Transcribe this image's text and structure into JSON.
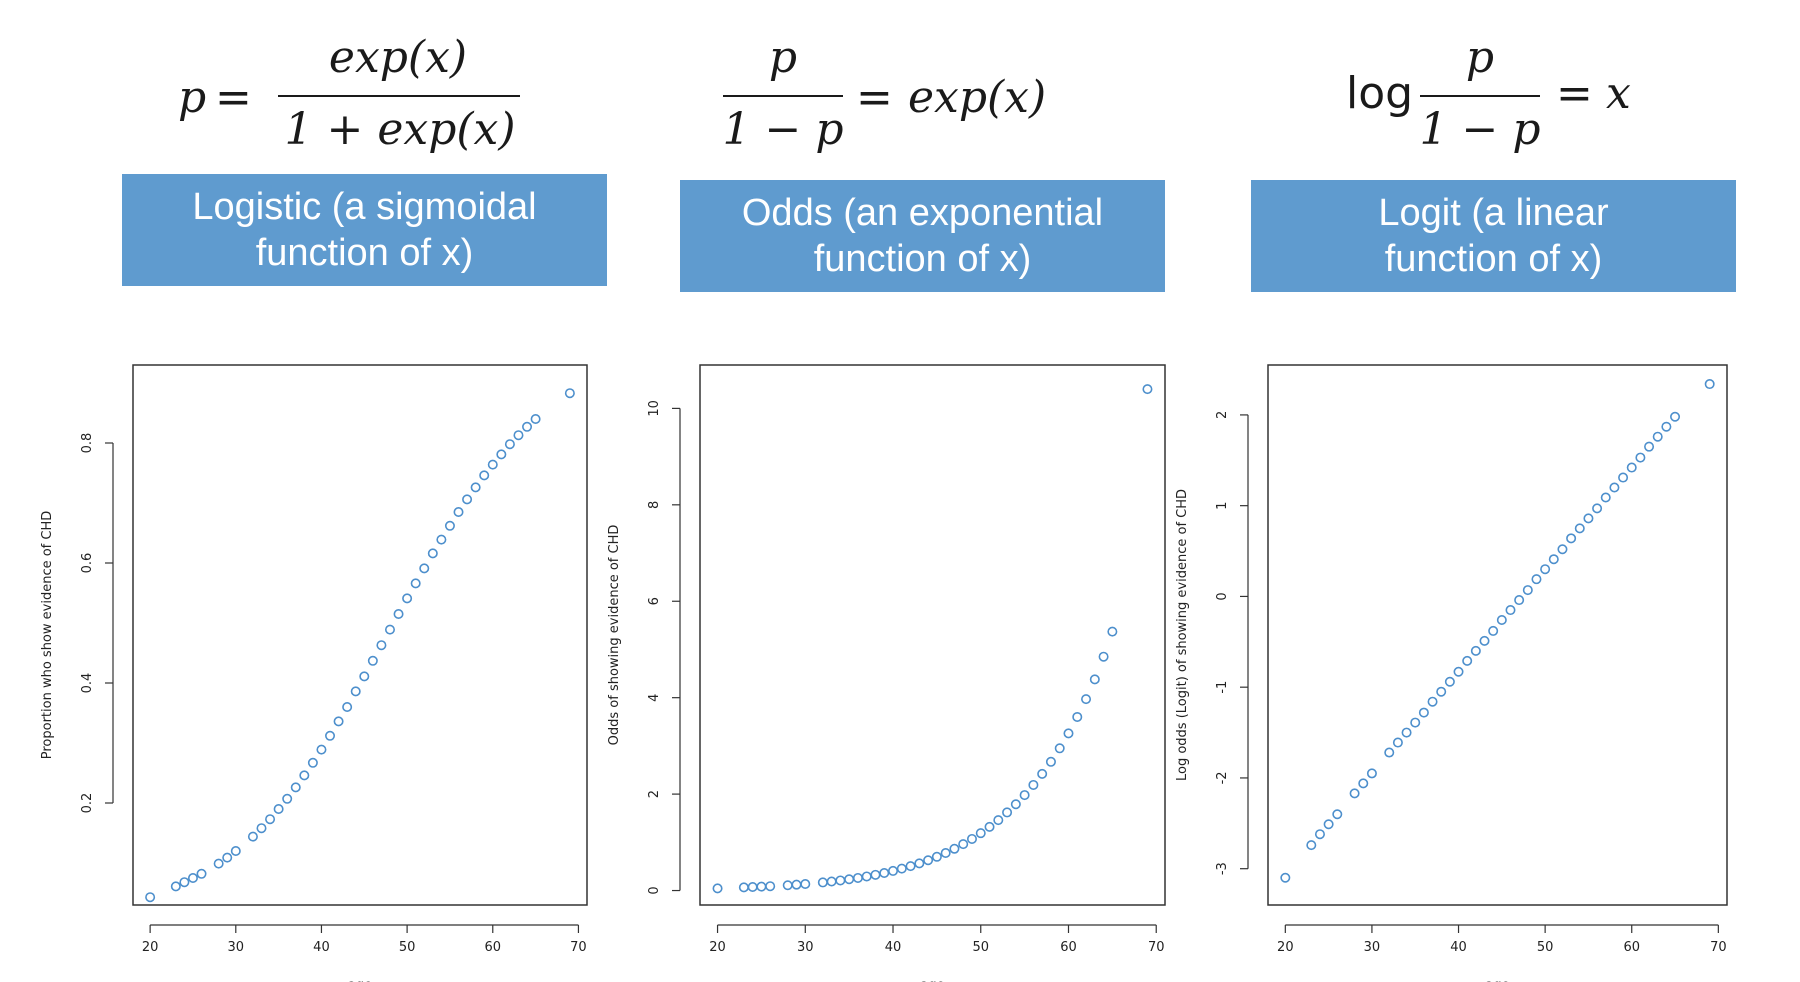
{
  "panels": [
    {
      "formula": {
        "lhs": "p",
        "eq": "=",
        "numerator": "exp(x)",
        "denominator": "1 + exp(x)"
      },
      "banner": {
        "line1": "Logistic (a sigmoidal",
        "line2": "function of x)"
      }
    },
    {
      "formula": {
        "numerator": "p",
        "denominator": "1 − p",
        "eq": "=",
        "rhs": "exp(x)"
      },
      "banner": {
        "line1": "Odds (an exponential",
        "line2": "function of x)"
      }
    },
    {
      "formula": {
        "prefix": "log",
        "numerator": "p",
        "denominator": "1 − p",
        "eq": "=",
        "rhs": "x"
      },
      "banner": {
        "line1": "Logit (a linear",
        "line2": "function of x)"
      }
    }
  ],
  "colors": {
    "banner": "#5f9bcf",
    "points": "#4d8fcc",
    "axis": "#333333"
  },
  "chart_data": [
    {
      "type": "scatter",
      "title": "",
      "xlabel": "age",
      "ylabel": "Proportion who show evidence of CHD",
      "xlim": [
        18,
        71
      ],
      "ylim": [
        0.03,
        0.93
      ],
      "xticks": [
        20,
        30,
        40,
        50,
        60,
        70
      ],
      "yticks": [
        0.2,
        0.4,
        0.6,
        0.8
      ],
      "ytick_labels": [
        "0.2",
        "0.4",
        "0.6",
        "0.8"
      ],
      "x": [
        20,
        23,
        24,
        25,
        26,
        28,
        29,
        30,
        32,
        33,
        34,
        35,
        36,
        37,
        38,
        39,
        40,
        41,
        42,
        43,
        44,
        45,
        46,
        47,
        48,
        49,
        50,
        51,
        52,
        53,
        54,
        55,
        56,
        57,
        58,
        59,
        60,
        61,
        62,
        63,
        64,
        65,
        69
      ],
      "y": [
        0.043,
        0.061,
        0.068,
        0.075,
        0.082,
        0.099,
        0.109,
        0.12,
        0.144,
        0.158,
        0.173,
        0.19,
        0.207,
        0.226,
        0.246,
        0.267,
        0.289,
        0.312,
        0.336,
        0.36,
        0.386,
        0.411,
        0.437,
        0.463,
        0.489,
        0.515,
        0.541,
        0.566,
        0.591,
        0.616,
        0.639,
        0.662,
        0.685,
        0.706,
        0.726,
        0.746,
        0.764,
        0.781,
        0.798,
        0.813,
        0.827,
        0.84,
        0.883
      ]
    },
    {
      "type": "scatter",
      "title": "",
      "xlabel": "age",
      "ylabel": "Odds of showing evidence of CHD",
      "xlim": [
        18,
        71
      ],
      "ylim": [
        -0.3,
        10.9
      ],
      "xticks": [
        20,
        30,
        40,
        50,
        60,
        70
      ],
      "yticks": [
        0,
        2,
        4,
        6,
        8,
        10
      ],
      "ytick_labels": [
        "0",
        "2",
        "4",
        "6",
        "8",
        "10"
      ],
      "x": [
        20,
        23,
        24,
        25,
        26,
        28,
        29,
        30,
        32,
        33,
        34,
        35,
        36,
        37,
        38,
        39,
        40,
        41,
        42,
        43,
        44,
        45,
        46,
        47,
        48,
        49,
        50,
        51,
        52,
        53,
        54,
        55,
        56,
        57,
        58,
        59,
        60,
        61,
        62,
        63,
        64,
        65,
        69
      ],
      "y": [
        0.045,
        0.065,
        0.073,
        0.081,
        0.09,
        0.11,
        0.122,
        0.136,
        0.168,
        0.187,
        0.209,
        0.234,
        0.261,
        0.292,
        0.326,
        0.364,
        0.407,
        0.454,
        0.506,
        0.563,
        0.628,
        0.7,
        0.779,
        0.866,
        0.963,
        1.07,
        1.19,
        1.32,
        1.46,
        1.62,
        1.79,
        1.98,
        2.19,
        2.42,
        2.67,
        2.95,
        3.26,
        3.6,
        3.97,
        4.38,
        4.85,
        5.37,
        10.4
      ]
    },
    {
      "type": "scatter",
      "title": "",
      "xlabel": "age",
      "ylabel": "Log odds (Logit) of showing evidence of CHD",
      "xlim": [
        18,
        71
      ],
      "ylim": [
        -3.4,
        2.55
      ],
      "xticks": [
        20,
        30,
        40,
        50,
        60,
        70
      ],
      "yticks": [
        -3,
        -2,
        -1,
        0,
        1,
        2
      ],
      "ytick_labels": [
        "-3",
        "-2",
        "-1",
        "0",
        "1",
        "2"
      ],
      "x": [
        20,
        23,
        24,
        25,
        26,
        28,
        29,
        30,
        32,
        33,
        34,
        35,
        36,
        37,
        38,
        39,
        40,
        41,
        42,
        43,
        44,
        45,
        46,
        47,
        48,
        49,
        50,
        51,
        52,
        53,
        54,
        55,
        56,
        57,
        58,
        59,
        60,
        61,
        62,
        63,
        64,
        65,
        69
      ],
      "y": [
        -3.1,
        -2.74,
        -2.62,
        -2.51,
        -2.4,
        -2.17,
        -2.06,
        -1.95,
        -1.72,
        -1.61,
        -1.5,
        -1.39,
        -1.28,
        -1.16,
        -1.05,
        -0.94,
        -0.83,
        -0.71,
        -0.6,
        -0.49,
        -0.38,
        -0.26,
        -0.15,
        -0.04,
        0.07,
        0.19,
        0.3,
        0.41,
        0.52,
        0.64,
        0.75,
        0.86,
        0.97,
        1.09,
        1.2,
        1.31,
        1.42,
        1.53,
        1.65,
        1.76,
        1.87,
        1.98,
        2.34
      ]
    }
  ]
}
